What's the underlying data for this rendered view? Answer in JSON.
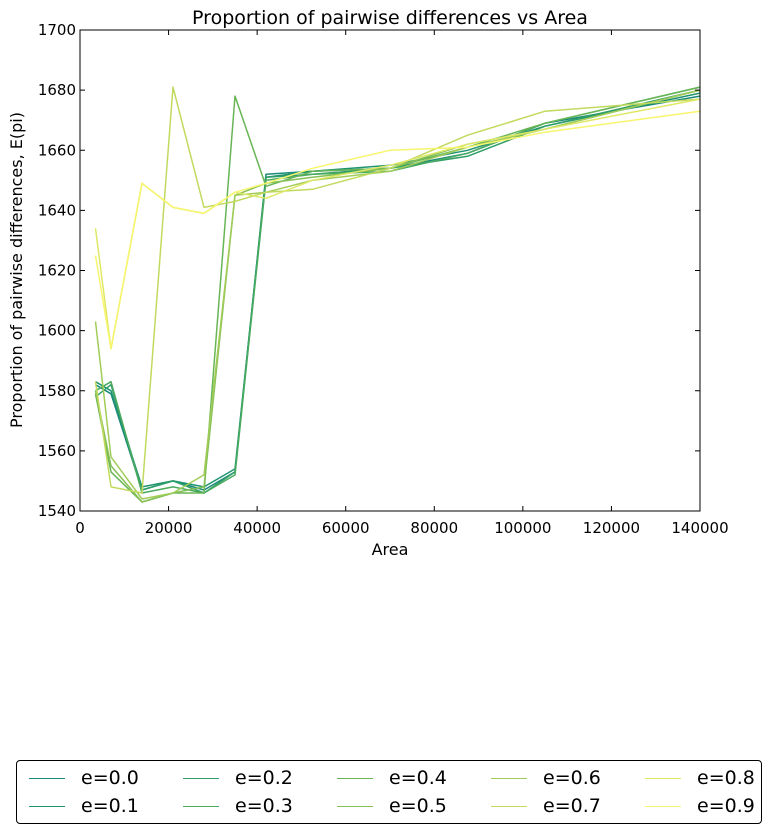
{
  "chart_data": {
    "type": "line",
    "title": "Proportion of pairwise differences vs Area",
    "xlabel": "Area",
    "ylabel": "Proportion of pairwise differences, E(pi)",
    "xlim": [
      0,
      140000
    ],
    "ylim": [
      1540,
      1700
    ],
    "xticks": [
      0,
      20000,
      40000,
      60000,
      80000,
      100000,
      120000,
      140000
    ],
    "yticks": [
      1540,
      1560,
      1580,
      1600,
      1620,
      1640,
      1660,
      1680,
      1700
    ],
    "grid": false,
    "legend_position": "below",
    "series": [
      {
        "name": "e=0.0",
        "color": "#1b8a7a",
        "x": [
          3500,
          7000,
          14000,
          21000,
          28000,
          35000,
          42000,
          52500,
          70000,
          87500,
          105000,
          140000
        ],
        "y": [
          1582,
          1579,
          1547,
          1550,
          1547,
          1553,
          1652,
          1653,
          1654,
          1659,
          1669,
          1678
        ]
      },
      {
        "name": "e=0.1",
        "color": "#1f9370",
        "x": [
          3500,
          7000,
          14000,
          21000,
          28000,
          35000,
          42000,
          52500,
          70000,
          87500,
          105000,
          140000
        ],
        "y": [
          1583,
          1580,
          1548,
          1550,
          1548,
          1554,
          1651,
          1653,
          1655,
          1660,
          1668,
          1679
        ]
      },
      {
        "name": "e=0.2",
        "color": "#2f9e68",
        "x": [
          3500,
          7000,
          14000,
          21000,
          28000,
          35000,
          42000,
          52500,
          70000,
          87500,
          105000,
          140000
        ],
        "y": [
          1578,
          1582,
          1547,
          1550,
          1546,
          1553,
          1651,
          1652,
          1654,
          1658,
          1668,
          1680
        ]
      },
      {
        "name": "e=0.3",
        "color": "#4aaa5f",
        "x": [
          3500,
          7000,
          14000,
          21000,
          28000,
          35000,
          42000,
          52500,
          70000,
          87500,
          105000,
          140000
        ],
        "y": [
          1580,
          1583,
          1546,
          1548,
          1546,
          1552,
          1650,
          1652,
          1653,
          1659,
          1669,
          1681
        ]
      },
      {
        "name": "e=0.4",
        "color": "#68b556",
        "x": [
          3500,
          7000,
          14000,
          21000,
          28000,
          35000,
          42000,
          52500,
          70000,
          87500,
          105000,
          140000
        ],
        "y": [
          1579,
          1553,
          1543,
          1546,
          1546,
          1678,
          1648,
          1653,
          1654,
          1661,
          1669,
          1681
        ]
      },
      {
        "name": "e=0.5",
        "color": "#86c156",
        "x": [
          3500,
          7000,
          14000,
          21000,
          28000,
          35000,
          42000,
          52500,
          70000,
          87500,
          105000,
          140000
        ],
        "y": [
          1580,
          1555,
          1543,
          1546,
          1548,
          1645,
          1649,
          1651,
          1654,
          1662,
          1667,
          1680
        ]
      },
      {
        "name": "e=0.6",
        "color": "#a1cc58",
        "x": [
          3500,
          7000,
          14000,
          21000,
          28000,
          35000,
          42000,
          52500,
          70000,
          87500,
          105000,
          140000
        ],
        "y": [
          1603,
          1558,
          1544,
          1546,
          1552,
          1645,
          1646,
          1650,
          1653,
          1661,
          1667,
          1680
        ]
      },
      {
        "name": "e=0.7",
        "color": "#c1da5e",
        "x": [
          3500,
          7000,
          14000,
          21000,
          28000,
          35000,
          42000,
          52500,
          70000,
          87500,
          105000,
          140000
        ],
        "y": [
          1583,
          1548,
          1546,
          1681,
          1641,
          1643,
          1646,
          1647,
          1654,
          1665,
          1673,
          1677
        ]
      },
      {
        "name": "e=0.8",
        "color": "#dfe866",
        "x": [
          3500,
          7000,
          14000,
          21000,
          28000,
          35000,
          42000,
          52500,
          70000,
          87500,
          105000,
          140000
        ],
        "y": [
          1634,
          1594,
          1649,
          1641,
          1639,
          1646,
          1644,
          1650,
          1655,
          1662,
          1667,
          1677
        ]
      },
      {
        "name": "e=0.9",
        "color": "#f7f56e",
        "x": [
          3500,
          7000,
          14000,
          21000,
          28000,
          35000,
          42000,
          52500,
          70000,
          87500,
          105000,
          140000
        ],
        "y": [
          1625,
          1594,
          1649,
          1641,
          1639,
          1646,
          1649,
          1654,
          1660,
          1661,
          1666,
          1673
        ]
      }
    ]
  }
}
